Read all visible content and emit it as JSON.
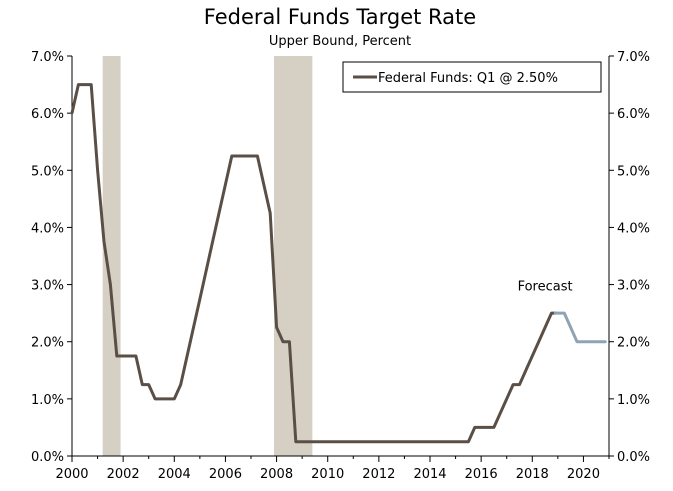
{
  "chart_data": {
    "type": "line",
    "title": "Federal Funds Target Rate",
    "subtitle": "Upper Bound, Percent",
    "xlim": [
      2000,
      2021
    ],
    "ylim": [
      0,
      7
    ],
    "x_ticks": [
      2000,
      2002,
      2004,
      2006,
      2008,
      2010,
      2012,
      2014,
      2016,
      2018,
      2020
    ],
    "y_ticks": [
      0,
      1,
      2,
      3,
      4,
      5,
      6,
      7
    ],
    "y_tick_labels": [
      "0.0%",
      "1.0%",
      "2.0%",
      "3.0%",
      "4.0%",
      "5.0%",
      "6.0%",
      "7.0%"
    ],
    "x_tick_labels": [
      "2000",
      "2002",
      "2004",
      "2006",
      "2008",
      "2010",
      "2012",
      "2014",
      "2016",
      "2018",
      "2020"
    ],
    "recessions": [
      {
        "start": 2001.2,
        "end": 2001.9
      },
      {
        "start": 2007.9,
        "end": 2009.4
      }
    ],
    "series": [
      {
        "name": "Federal Funds: Q1 @ 2.50%",
        "color": "#5a4f47",
        "x": [
          2000.0,
          2000.25,
          2000.75,
          2001.0,
          2001.25,
          2001.5,
          2001.75,
          2002.0,
          2002.5,
          2002.75,
          2003.0,
          2003.25,
          2003.5,
          2004.0,
          2004.25,
          2004.5,
          2005.0,
          2005.5,
          2006.0,
          2006.25,
          2006.5,
          2007.0,
          2007.25,
          2007.5,
          2007.75,
          2008.0,
          2008.25,
          2008.5,
          2008.75,
          2009.0,
          2015.5,
          2015.75,
          2016.0,
          2016.5,
          2016.75,
          2017.0,
          2017.25,
          2017.5,
          2017.75,
          2018.0,
          2018.25,
          2018.5,
          2018.75,
          2018.9
        ],
        "y": [
          6.0,
          6.5,
          6.5,
          5.0,
          3.75,
          3.0,
          1.75,
          1.75,
          1.75,
          1.25,
          1.25,
          1.0,
          1.0,
          1.0,
          1.25,
          1.75,
          2.75,
          3.75,
          4.75,
          5.25,
          5.25,
          5.25,
          5.25,
          4.75,
          4.25,
          2.25,
          2.0,
          2.0,
          0.25,
          0.25,
          0.25,
          0.5,
          0.5,
          0.5,
          0.75,
          1.0,
          1.25,
          1.25,
          1.5,
          1.75,
          2.0,
          2.25,
          2.5,
          2.5
        ]
      },
      {
        "name": "Forecast",
        "color": "#8ea3b5",
        "x": [
          2018.9,
          2019.25,
          2019.75,
          2020.0,
          2020.5,
          2020.85
        ],
        "y": [
          2.5,
          2.5,
          2.0,
          2.0,
          2.0,
          2.0
        ]
      }
    ],
    "legend": {
      "label": "Federal Funds: Q1 @ 2.50%",
      "position": "top-right"
    },
    "annotations": [
      {
        "text": "Forecast",
        "x": 2018.5,
        "y": 2.9
      }
    ]
  }
}
